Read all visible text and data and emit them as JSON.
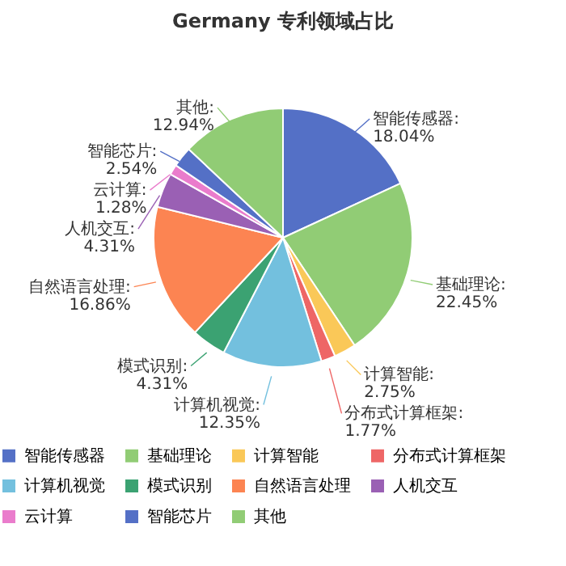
{
  "chart_data": {
    "type": "pie",
    "title": "Germany 专利领域占比",
    "categories": [
      "智能传感器",
      "基础理论",
      "计算智能",
      "分布式计算框架",
      "计算机视觉",
      "模式识别",
      "自然语言处理",
      "人机交互",
      "云计算",
      "智能芯片",
      "其他"
    ],
    "values": [
      18.04,
      22.45,
      2.75,
      1.77,
      12.35,
      4.31,
      16.86,
      4.31,
      1.28,
      2.54,
      12.94
    ],
    "colors": [
      "#5470c6",
      "#91cc75",
      "#fac858",
      "#ee6666",
      "#73c0de",
      "#3ba272",
      "#fc8452",
      "#9a60b4",
      "#ea7ccc",
      "#5470c6",
      "#91cc75"
    ],
    "value_labels": [
      "智能传感器: 18.04%",
      "基础理论: 22.45%",
      "计算智能: 2.75%",
      "分布式计算框架: 1.77%",
      "计算机视觉: 12.35%",
      "模式识别: 4.31%",
      "自然语言处理: 16.86%",
      "人机交互: 4.31%",
      "云计算: 1.28%",
      "智能芯片: 2.54%",
      "其他: 12.94%"
    ],
    "legend": "bottom"
  }
}
